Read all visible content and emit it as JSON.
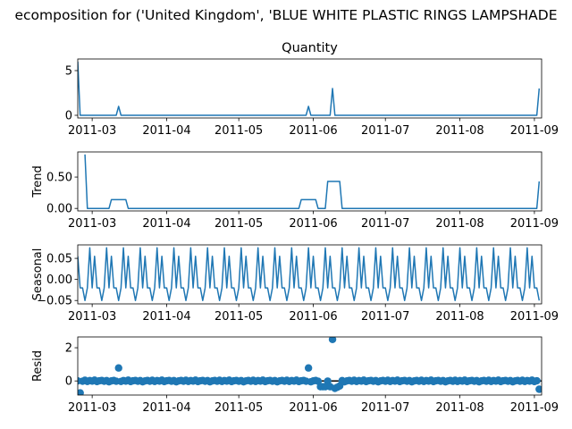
{
  "figure": {
    "suptitle": "ecomposition for ('United Kingdom', 'BLUE WHITE PLASTIC RINGS LAMPSHADE"
  },
  "chart_data": [
    {
      "type": "line",
      "panel": "observed",
      "title": "Quantity",
      "ylabel": "",
      "ylim": [
        -0.3,
        6.3
      ],
      "yticks": [
        0,
        5
      ],
      "xlim": [
        "2011-02-23",
        "2011-09-04"
      ],
      "xticks": [
        "2011-03",
        "2011-04",
        "2011-05",
        "2011-06",
        "2011-07",
        "2011-08",
        "2011-09"
      ],
      "color": "#1f77b4",
      "x": [
        "2011-02-23",
        "2011-02-24",
        "2011-03-11",
        "2011-03-12",
        "2011-03-13",
        "2011-05-29",
        "2011-05-30",
        "2011-05-31",
        "2011-06-08",
        "2011-06-09",
        "2011-06-10",
        "2011-09-02",
        "2011-09-03"
      ],
      "y": [
        6,
        0,
        0,
        1,
        0,
        0,
        1,
        0,
        0,
        3,
        0,
        0,
        3
      ]
    },
    {
      "type": "line",
      "panel": "trend",
      "ylabel": "Trend",
      "ylim": [
        -0.04,
        0.9
      ],
      "yticks": [
        0.0,
        0.5
      ],
      "xlim": [
        "2011-02-23",
        "2011-09-04"
      ],
      "xticks": [
        "2011-03",
        "2011-04",
        "2011-05",
        "2011-06",
        "2011-07",
        "2011-08",
        "2011-09"
      ],
      "color": "#1f77b4",
      "x": [
        "2011-02-26",
        "2011-02-27",
        "2011-03-08",
        "2011-03-09",
        "2011-03-15",
        "2011-03-16",
        "2011-05-26",
        "2011-05-27",
        "2011-06-02",
        "2011-06-03",
        "2011-06-06",
        "2011-06-07",
        "2011-06-12",
        "2011-06-13",
        "2011-08-30",
        "2011-08-31",
        "2011-09-02",
        "2011-09-03"
      ],
      "y": [
        0.86,
        0.0,
        0.0,
        0.14,
        0.14,
        0.0,
        0.0,
        0.14,
        0.14,
        0.0,
        0.0,
        0.43,
        0.43,
        0.0,
        0.0,
        0.0,
        0.0,
        0.43
      ]
    },
    {
      "type": "line",
      "panel": "seasonal",
      "ylabel": "Seasonal",
      "ylim": [
        -0.058,
        0.082
      ],
      "yticks": [
        -0.05,
        0.0,
        0.05
      ],
      "xlim": [
        "2011-02-23",
        "2011-09-04"
      ],
      "xticks": [
        "2011-03",
        "2011-04",
        "2011-05",
        "2011-06",
        "2011-07",
        "2011-08",
        "2011-09"
      ],
      "color": "#1f77b4",
      "start": "2011-02-23",
      "end": "2011-09-03",
      "weekly_pattern": [
        0.055,
        -0.02,
        -0.02,
        -0.05,
        -0.02,
        0.075,
        -0.02
      ]
    },
    {
      "type": "scatter",
      "panel": "resid",
      "ylabel": "Resid",
      "ylim": [
        -0.85,
        2.65
      ],
      "yticks": [
        0,
        2
      ],
      "xlim": [
        "2011-02-23",
        "2011-09-04"
      ],
      "xticks": [
        "2011-03",
        "2011-04",
        "2011-05",
        "2011-06",
        "2011-07",
        "2011-08",
        "2011-09"
      ],
      "color": "#1f77b4",
      "baseline": 0,
      "start": "2011-02-23",
      "end": "2011-09-03",
      "background_points": [
        0.0,
        0.03,
        -0.02,
        0.04,
        -0.03,
        0.02,
        -0.01,
        0.05,
        -0.04,
        0.01,
        0.03,
        -0.02,
        0.02,
        -0.05
      ],
      "notable_points": [
        {
          "x": "2011-02-24",
          "y": -0.72
        },
        {
          "x": "2011-03-12",
          "y": 0.78
        },
        {
          "x": "2011-05-30",
          "y": 0.78
        },
        {
          "x": "2011-06-04",
          "y": -0.35
        },
        {
          "x": "2011-06-05",
          "y": -0.35
        },
        {
          "x": "2011-06-06",
          "y": -0.35
        },
        {
          "x": "2011-06-08",
          "y": -0.35
        },
        {
          "x": "2011-06-09",
          "y": 2.5
        },
        {
          "x": "2011-06-10",
          "y": -0.45
        },
        {
          "x": "2011-06-11",
          "y": -0.38
        },
        {
          "x": "2011-06-12",
          "y": -0.3
        },
        {
          "x": "2011-09-03",
          "y": -0.5
        }
      ]
    }
  ]
}
